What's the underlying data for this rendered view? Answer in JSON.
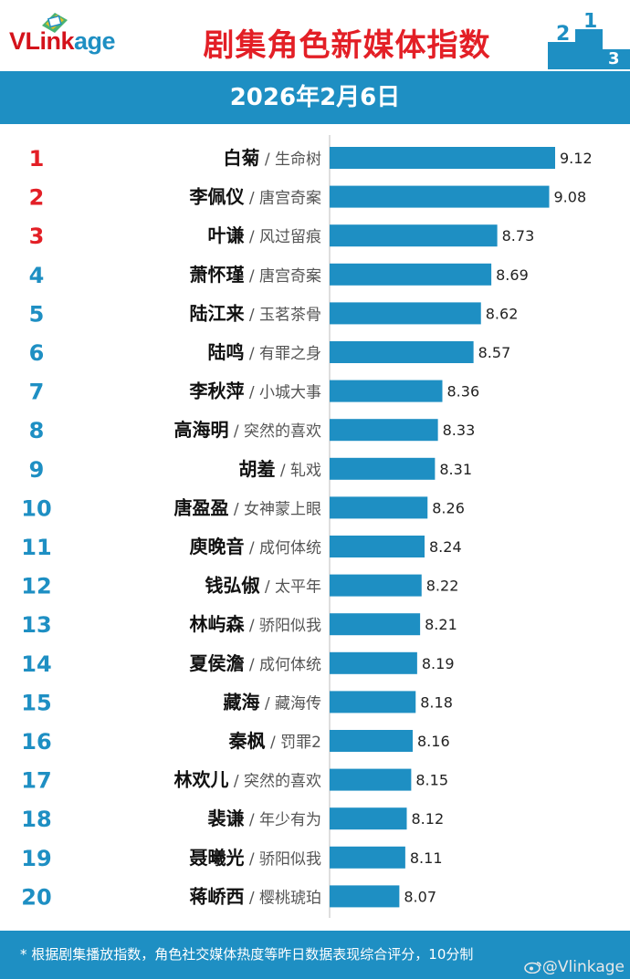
{
  "header": {
    "logo": "VLinkage",
    "title": "剧集角色新媒体指数"
  },
  "date": "2026年2月6日",
  "footer": {
    "note": "* 根据剧集播放指数，角色社交媒体热度等昨日数据表现综合评分，10分制",
    "watermark": "@Vlinkage"
  },
  "colors": {
    "accent": "#1e8fc3",
    "title_red": "#e31f26",
    "rank_top": "#e31f26",
    "bar": "#1e8fc3"
  },
  "chart_data": {
    "type": "bar",
    "orientation": "horizontal",
    "title": "剧集角色新媒体指数",
    "xlim": [
      7.6,
      9.2
    ],
    "categories": [
      "白菊",
      "李佩仪",
      "叶谦",
      "萧怀瑾",
      "陆江来",
      "陆鸣",
      "李秋萍",
      "高海明",
      "胡羞",
      "唐盈盈",
      "庾晚音",
      "钱弘俶",
      "林屿森",
      "夏侯澹",
      "藏海",
      "秦枫",
      "林欢儿",
      "裴谦",
      "聂曦光",
      "蒋峤西"
    ],
    "ranks": [
      "1",
      "2",
      "3",
      "4",
      "5",
      "6",
      "7",
      "8",
      "9",
      "10",
      "11",
      "12",
      "13",
      "14",
      "15",
      "16",
      "17",
      "18",
      "19",
      "20"
    ],
    "dramas": [
      "生命树",
      "唐宫奇案",
      "风过留痕",
      "唐宫奇案",
      "玉茗茶骨",
      "有罪之身",
      "小城大事",
      "突然的喜欢",
      "轧戏",
      "女神蒙上眼",
      "成何体统",
      "太平年",
      "骄阳似我",
      "成何体统",
      "藏海传",
      "罚罪2",
      "突然的喜欢",
      "年少有为",
      "骄阳似我",
      "樱桃琥珀"
    ],
    "values": [
      9.12,
      9.08,
      8.73,
      8.69,
      8.62,
      8.57,
      8.36,
      8.33,
      8.31,
      8.26,
      8.24,
      8.22,
      8.21,
      8.19,
      8.18,
      8.16,
      8.15,
      8.12,
      8.11,
      8.07
    ],
    "value_labels": [
      "9.12",
      "9.08",
      "8.73",
      "8.69",
      "8.62",
      "8.57",
      "8.36",
      "8.33",
      "8.31",
      "8.26",
      "8.24",
      "8.22",
      "8.21",
      "8.19",
      "8.18",
      "8.16",
      "8.15",
      "8.12",
      "8.11",
      "8.07"
    ]
  }
}
